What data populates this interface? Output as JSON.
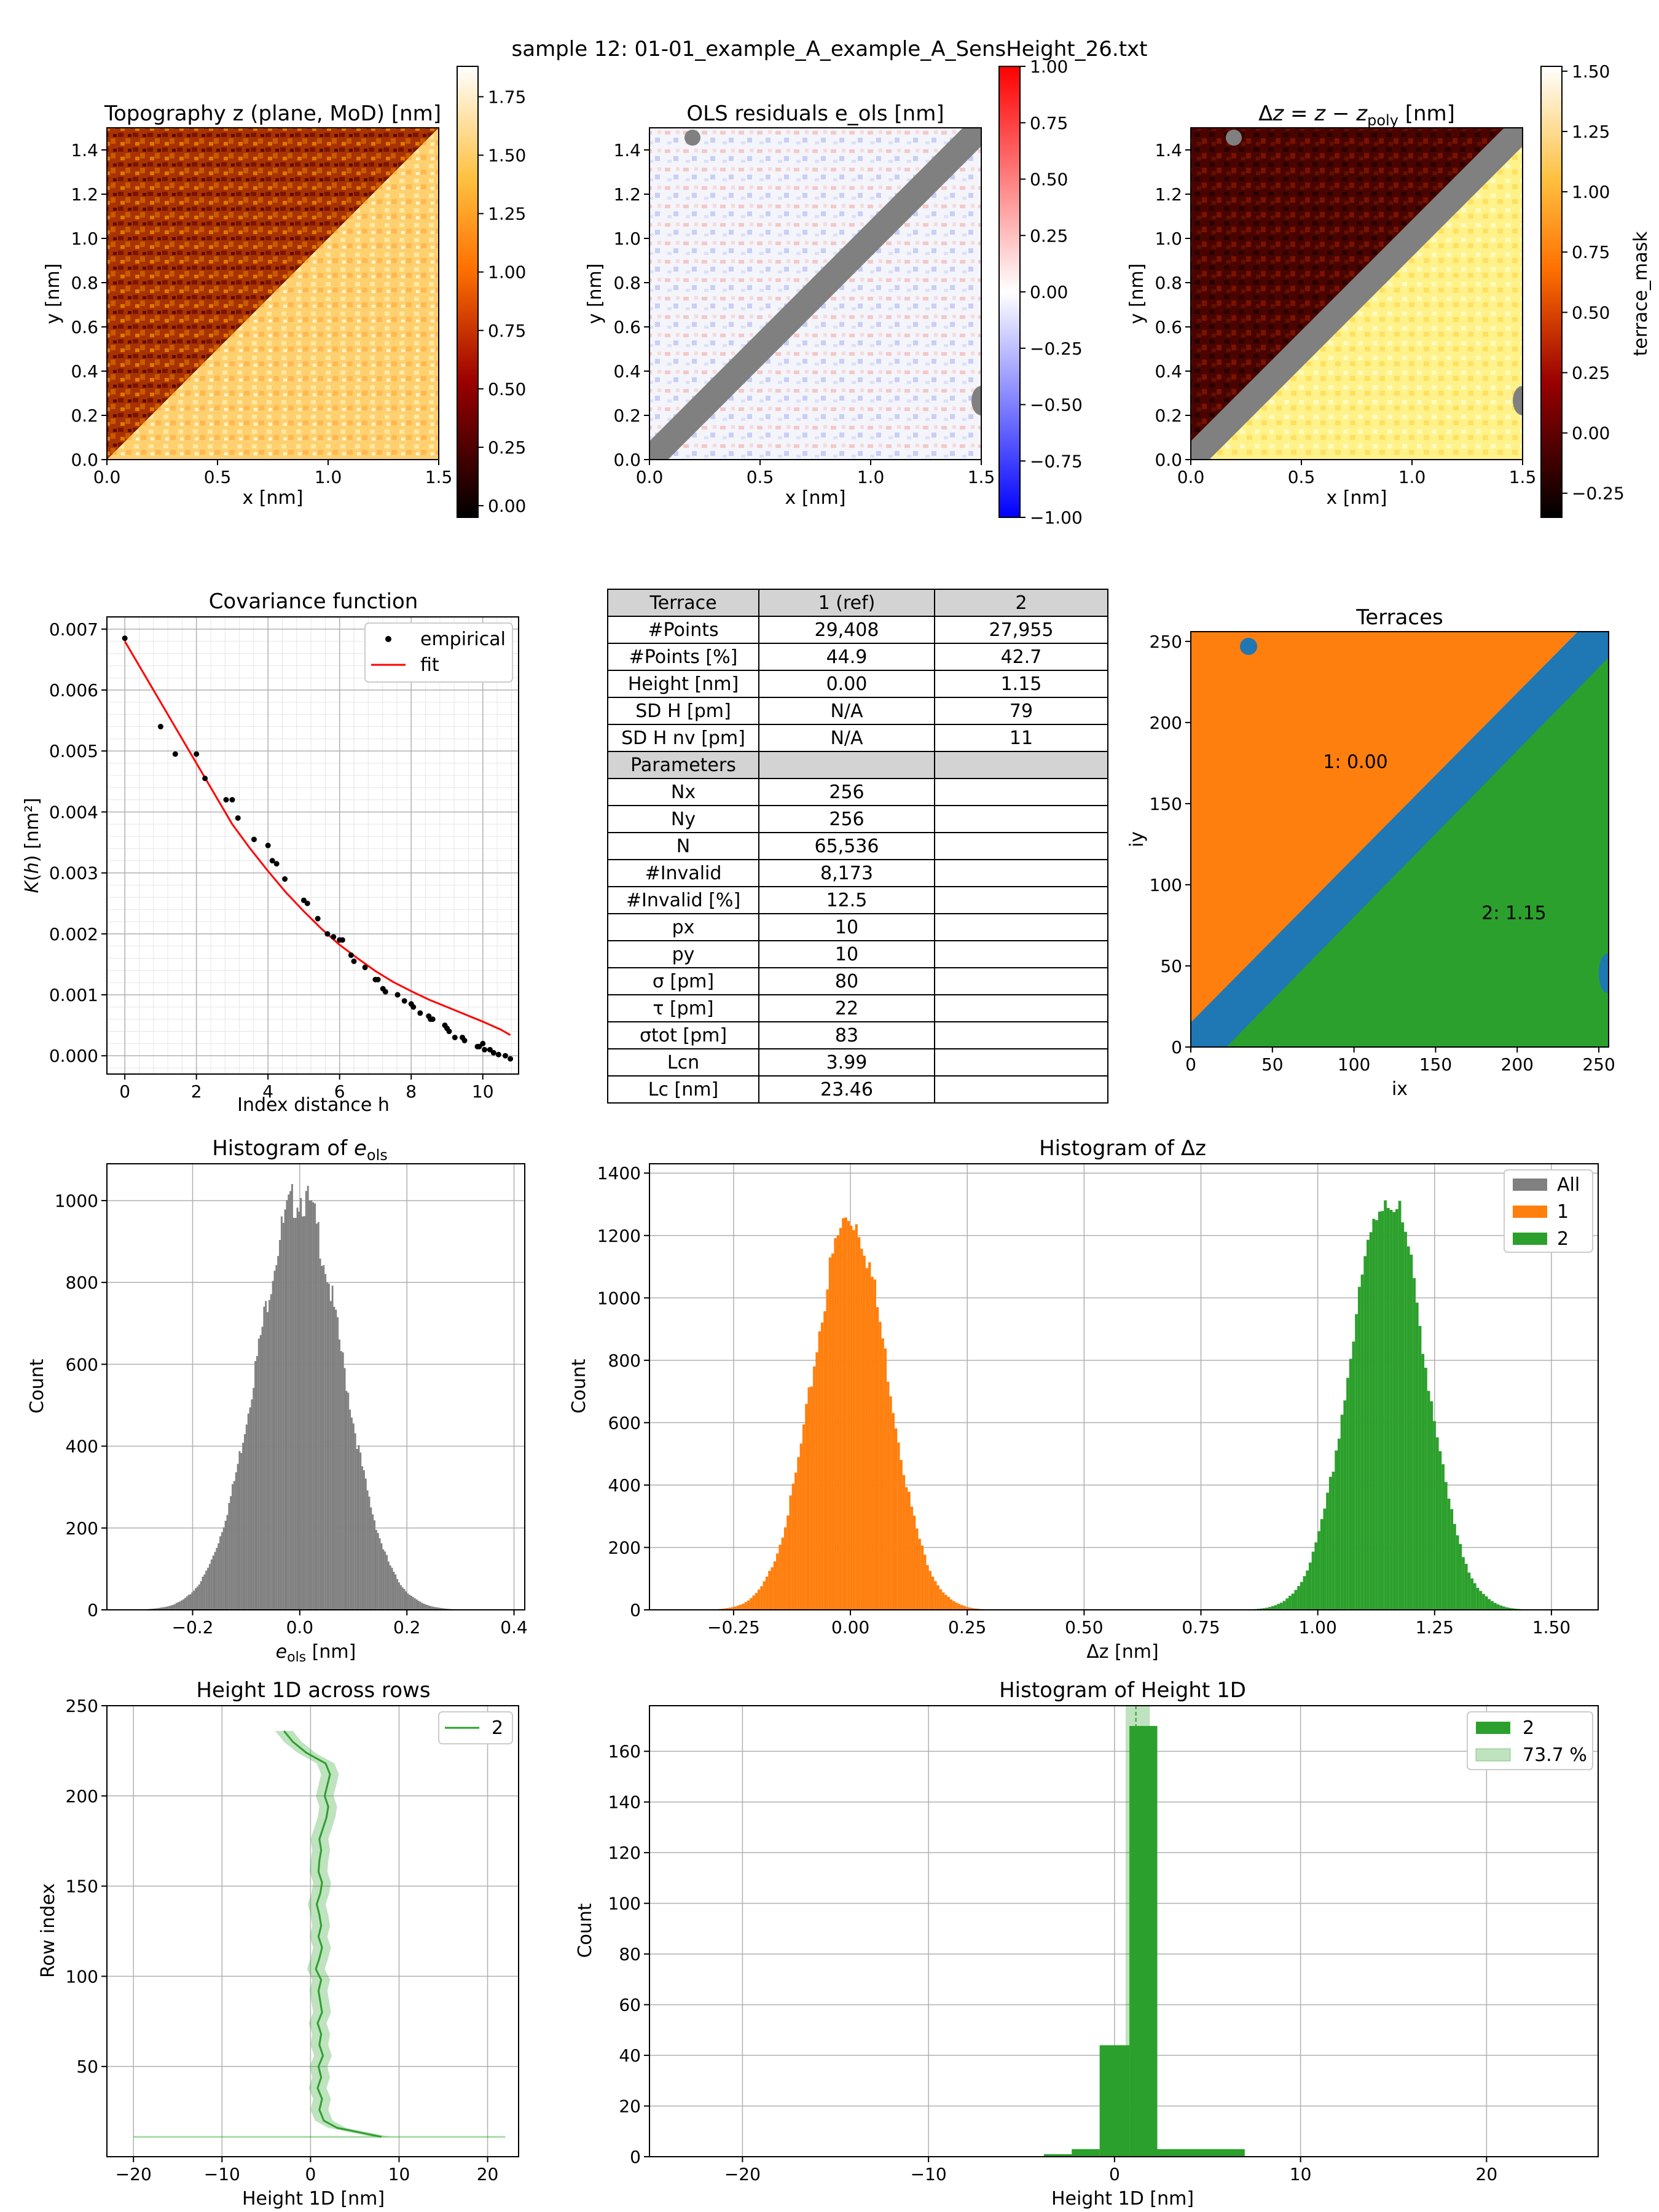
{
  "suptitle": "sample 12: 01-01_example_A_example_A_SensHeight_26.txt",
  "colors": {
    "empirical": "#000000",
    "fit": "#ff0000",
    "all": "#808080",
    "terrace1": "#ff7f0e",
    "terrace2": "#2ca02c",
    "band": "#1f77b4",
    "masked": "#808080"
  },
  "panels": {
    "topo": {
      "title": "Topography z (plane, MoD) [nm]",
      "xlabel": "x [nm]",
      "ylabel": "y [nm]",
      "colorbar_ticks": [
        "0.00",
        "0.25",
        "0.50",
        "0.75",
        "1.00",
        "1.25",
        "1.50",
        "1.75"
      ],
      "colormap": "afmhot"
    },
    "resid": {
      "title": "OLS residuals e_ols [nm]",
      "xlabel": "x [nm]",
      "ylabel": "y [nm]",
      "colorbar_ticks": [
        "−1.00",
        "−0.75",
        "−0.50",
        "−0.25",
        "0.00",
        "0.25",
        "0.50",
        "0.75",
        "1.00"
      ],
      "colormap": "bwr"
    },
    "dz": {
      "title": "Δz = z − z_poly [nm]",
      "xlabel": "x [nm]",
      "ylabel": "y [nm]",
      "colorbar_ticks": [
        "−0.25",
        "0.00",
        "0.25",
        "0.50",
        "0.75",
        "1.00",
        "1.25",
        "1.50"
      ],
      "colorbar_label": "terrace_mask",
      "colormap": "afmhot"
    },
    "cov": {
      "title": "Covariance function",
      "xlabel": "Index distance h",
      "ylabel": "K(h) [nm²]",
      "legend": [
        "empirical",
        "fit"
      ]
    },
    "terraces": {
      "title": "Terraces",
      "xlabel": "ix",
      "ylabel": "iy",
      "labels": [
        "1: 0.00",
        "2: 1.15"
      ]
    },
    "hist_eols": {
      "title": "Histogram of e_ols",
      "xlabel": "e_ols [nm]",
      "ylabel": "Count"
    },
    "hist_dz": {
      "title": "Histogram of Δz",
      "xlabel": "Δz [nm]",
      "ylabel": "Count",
      "legend": [
        "All",
        "1",
        "2"
      ]
    },
    "h1d_rows": {
      "title": "Height 1D across rows",
      "xlabel": "Height 1D [nm]",
      "ylabel": "Row index",
      "legend": [
        "2"
      ]
    },
    "hist_h1d": {
      "title": "Histogram of Height 1D",
      "xlabel": "Height 1D [nm]",
      "ylabel": "Count",
      "legend": [
        "2",
        "73.7 %"
      ]
    }
  },
  "table": {
    "header": [
      "Terrace",
      "1 (ref)",
      "2"
    ],
    "rows": [
      [
        "#Points",
        "29,408",
        "27,955"
      ],
      [
        "#Points [%]",
        "44.9",
        "42.7"
      ],
      [
        "Height [nm]",
        "0.00",
        "1.15"
      ],
      [
        "SD H [pm]",
        "N/A",
        "79"
      ],
      [
        "SD H nv [pm]",
        "N/A",
        "11"
      ]
    ],
    "param_header": "Parameters",
    "params": [
      [
        "Nx",
        "256"
      ],
      [
        "Ny",
        "256"
      ],
      [
        "N",
        "65,536"
      ],
      [
        "#Invalid",
        "8,173"
      ],
      [
        "#Invalid [%]",
        "12.5"
      ],
      [
        "px",
        "10"
      ],
      [
        "py",
        "10"
      ],
      [
        "σ [pm]",
        "80"
      ],
      [
        "τ [pm]",
        "22"
      ],
      [
        "σtot [pm]",
        "83"
      ],
      [
        "Lcn",
        "3.99"
      ],
      [
        "Lc [nm]",
        "23.46"
      ]
    ]
  },
  "chart_data": [
    {
      "type": "heatmap",
      "id": "topo",
      "title": "Topography z (plane, MoD) [nm]",
      "xlabel": "x [nm]",
      "ylabel": "y [nm]",
      "xlim": [
        0,
        1.5
      ],
      "ylim": [
        0,
        1.5
      ],
      "clim": [
        -0.05,
        1.88
      ],
      "description_regions": [
        {
          "region": "upper-left terrace",
          "level": 0.4
        },
        {
          "region": "lower-right terrace",
          "level": 1.6
        }
      ]
    },
    {
      "type": "heatmap",
      "id": "resid",
      "title": "OLS residuals e_ols [nm]",
      "xlabel": "x [nm]",
      "ylabel": "y [nm]",
      "xlim": [
        0,
        1.5
      ],
      "ylim": [
        0,
        1.5
      ],
      "clim": [
        -1,
        1
      ]
    },
    {
      "type": "heatmap",
      "id": "dz",
      "title": "Δz = z − z_poly [nm]",
      "xlabel": "x [nm]",
      "ylabel": "y [nm]",
      "xlim": [
        0,
        1.5
      ],
      "ylim": [
        0,
        1.5
      ],
      "clim": [
        -0.35,
        1.52
      ]
    },
    {
      "type": "scatter",
      "id": "cov",
      "title": "Covariance function",
      "xlabel": "Index distance h",
      "ylabel": "K(h) [nm²]",
      "xlim": [
        -0.5,
        11
      ],
      "ylim": [
        -0.0003,
        0.0072
      ],
      "series": [
        {
          "name": "empirical",
          "x": [
            0,
            1,
            1.41,
            2,
            2.24,
            2.83,
            3,
            3.16,
            3.61,
            4,
            4.12,
            4.24,
            4.47,
            5,
            5.1,
            5.39,
            5.66,
            5.83,
            6,
            6.08,
            6.32,
            6.4,
            6.71,
            7,
            7.07,
            7.21,
            7.28,
            7.62,
            7.81,
            8,
            8.06,
            8.25,
            8.49,
            8.54,
            8.6,
            8.94,
            9,
            9.06,
            9.22,
            9.43,
            9.49,
            9.85,
            9.9,
            10,
            10.05,
            10.2,
            10.3,
            10.44,
            10.63,
            10.77
          ],
          "y": [
            0.00685,
            0.0054,
            0.00495,
            0.00495,
            0.00455,
            0.0042,
            0.0042,
            0.0039,
            0.00355,
            0.00345,
            0.0032,
            0.00315,
            0.0029,
            0.00255,
            0.0025,
            0.00225,
            0.002,
            0.00195,
            0.0019,
            0.0019,
            0.00165,
            0.00155,
            0.00145,
            0.00125,
            0.00125,
            0.0011,
            0.00105,
            0.001,
            0.0009,
            0.00085,
            0.0008,
            0.0007,
            0.00065,
            0.0006,
            0.0006,
            0.0005,
            0.00045,
            0.0004,
            0.0003,
            0.0003,
            0.00025,
            0.00015,
            0.00015,
            0.0002,
            0.0001,
            0.0001,
            5e-05,
            2e-05,
            0.0,
            -5e-05
          ]
        },
        {
          "name": "fit",
          "x": [
            0,
            0.5,
            1,
            1.5,
            2,
            2.5,
            3,
            3.5,
            4,
            4.5,
            5,
            5.5,
            6,
            6.5,
            7,
            7.5,
            8,
            8.5,
            9,
            9.5,
            10,
            10.5,
            10.77
          ],
          "y": [
            0.0068,
            0.0063,
            0.0058,
            0.0053,
            0.0048,
            0.0043,
            0.0038,
            0.0034,
            0.00303,
            0.00268,
            0.00237,
            0.00208,
            0.00182,
            0.0016,
            0.00139,
            0.00121,
            0.00106,
            0.00092,
            0.0008,
            0.00068,
            0.00056,
            0.00043,
            0.00034
          ]
        }
      ]
    },
    {
      "type": "heatmap",
      "id": "terraces",
      "title": "Terraces",
      "xlabel": "ix",
      "ylabel": "iy",
      "xlim": [
        0,
        256
      ],
      "ylim": [
        0,
        256
      ],
      "labels": [
        {
          "text": "1: 0.00",
          "x": 100,
          "y": 175
        },
        {
          "text": "2: 1.15",
          "x": 195,
          "y": 80
        }
      ]
    },
    {
      "type": "bar",
      "id": "hist_eols",
      "title": "Histogram of e_ols",
      "xlabel": "e_ols [nm]",
      "ylabel": "Count",
      "xlim": [
        -0.36,
        0.42
      ],
      "ylim": [
        0,
        1090
      ],
      "gaussian": {
        "mean": 0.0,
        "sd": 0.08,
        "peak": 1010,
        "range": [
          -0.33,
          0.39
        ]
      }
    },
    {
      "type": "bar",
      "id": "hist_dz",
      "title": "Histogram of Δz",
      "xlabel": "Δz [nm]",
      "ylabel": "Count",
      "xlim": [
        -0.43,
        1.6
      ],
      "ylim": [
        0,
        1430
      ],
      "series": [
        {
          "name": "All",
          "mean": 0,
          "sd": 0,
          "peak": 0
        },
        {
          "name": "1",
          "mean": 0.0,
          "sd": 0.08,
          "peak": 1260,
          "range": [
            -0.3,
            0.32
          ]
        },
        {
          "name": "2",
          "mean": 1.15,
          "sd": 0.08,
          "peak": 1330,
          "range": [
            0.82,
            1.5
          ]
        }
      ]
    },
    {
      "type": "line",
      "id": "h1d_rows",
      "title": "Height 1D across rows",
      "xlabel": "Height 1D [nm]",
      "ylabel": "Row index",
      "xlim": [
        -23,
        23.5
      ],
      "ylim": [
        0,
        250
      ],
      "series": [
        {
          "name": "2",
          "x": [
            8,
            6,
            3,
            1.5,
            1,
            1.3,
            0.8,
            1.2,
            0.9,
            1.4,
            1.0,
            1.2,
            0.8,
            1.3,
            1.1,
            0.9,
            1.2,
            0.6,
            1.0,
            1.3,
            0.9,
            1.2,
            1.0,
            0.7,
            1.1,
            1.3,
            0.9,
            1.0,
            1.2,
            1.0,
            1.4,
            1.8,
            2.0,
            1.6,
            1.9,
            2.2,
            1.7,
            -0.5,
            -2,
            -3
          ],
          "y": [
            11,
            13,
            16,
            20,
            26,
            32,
            38,
            44,
            50,
            56,
            62,
            68,
            74,
            80,
            86,
            92,
            98,
            104,
            110,
            116,
            122,
            128,
            134,
            140,
            146,
            152,
            158,
            164,
            170,
            176,
            182,
            188,
            194,
            200,
            206,
            212,
            218,
            224,
            230,
            236
          ]
        }
      ]
    },
    {
      "type": "bar",
      "id": "hist_h1d",
      "title": "Histogram of Height 1D",
      "xlabel": "Height 1D [nm]",
      "ylabel": "Count",
      "xlim": [
        -25,
        26
      ],
      "ylim": [
        0,
        178
      ],
      "bins": [
        {
          "x0": -3.8,
          "x1": -2.3,
          "v": 1
        },
        {
          "x0": -2.3,
          "x1": -0.8,
          "v": 3
        },
        {
          "x0": -0.8,
          "x1": 0.8,
          "v": 44
        },
        {
          "x0": 0.8,
          "x1": 2.3,
          "v": 170
        },
        {
          "x0": 2.3,
          "x1": 7,
          "v": 3
        }
      ],
      "band": [
        0.6,
        1.9
      ],
      "series": [
        {
          "name": "2"
        },
        {
          "name": "73.7 %"
        }
      ]
    }
  ]
}
